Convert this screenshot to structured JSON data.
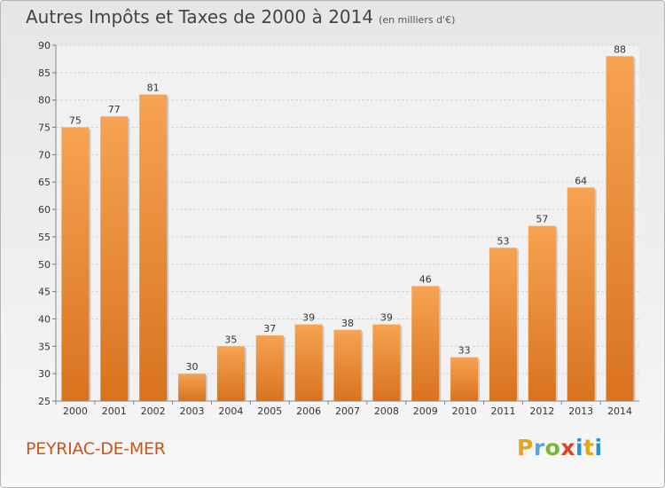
{
  "header": {
    "title": "Autres Impôts et Taxes de 2000 à 2014",
    "subtitle": "(en milliers d'€)"
  },
  "footer": {
    "commune": "PEYRIAC-DE-MER",
    "logo_letters": [
      "P",
      "r",
      "o",
      "x",
      "i",
      "t",
      "i"
    ],
    "logo_colors": [
      "#e8a21b",
      "#5da5d8",
      "#7ab535",
      "#e0421e",
      "#2d8fd6",
      "#e8a21b",
      "#2d8fd6"
    ]
  },
  "chart_data": {
    "type": "bar",
    "categories": [
      "2000",
      "2001",
      "2002",
      "2003",
      "2004",
      "2005",
      "2006",
      "2007",
      "2008",
      "2009",
      "2010",
      "2011",
      "2012",
      "2013",
      "2014"
    ],
    "values": [
      75,
      77,
      81,
      30,
      35,
      37,
      39,
      38,
      39,
      46,
      33,
      53,
      57,
      64,
      88
    ],
    "ylim": [
      25,
      90
    ],
    "yticks": [
      25,
      30,
      35,
      40,
      45,
      50,
      55,
      60,
      65,
      70,
      75,
      80,
      85,
      90
    ],
    "grid": true,
    "bar_color_top": "#f6a352",
    "bar_color_bottom": "#d8731f"
  }
}
